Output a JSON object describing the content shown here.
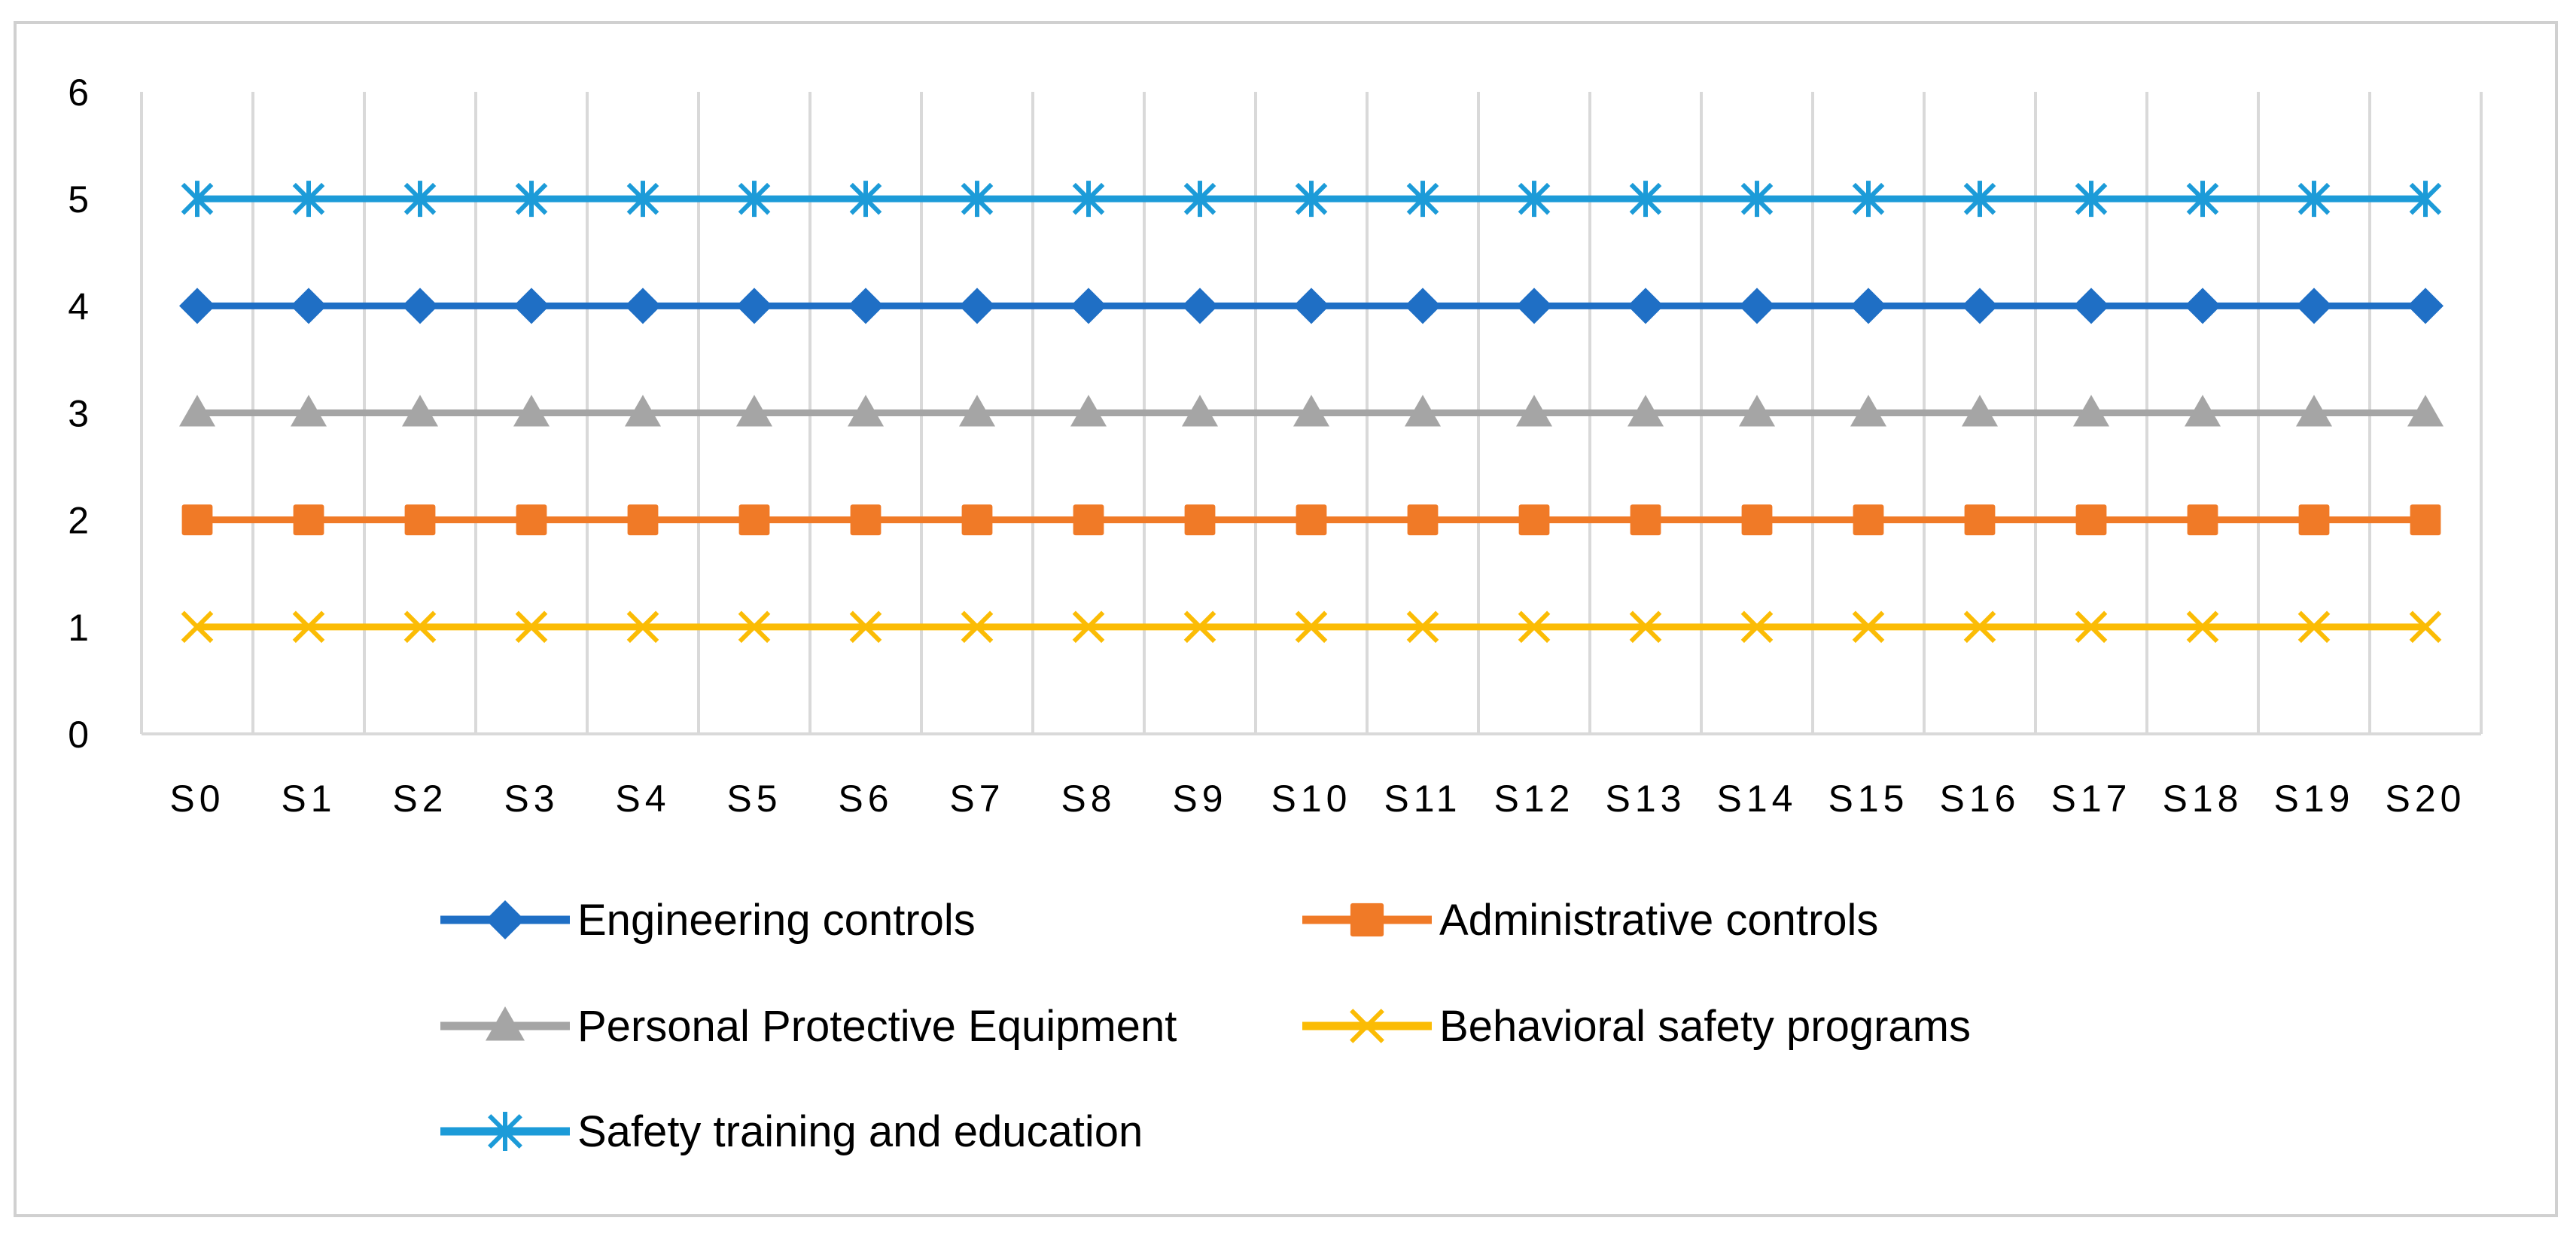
{
  "chart_data": {
    "type": "line",
    "title": "",
    "xlabel": "",
    "ylabel": "",
    "ylim": [
      0,
      6
    ],
    "yticks": [
      "0",
      "1",
      "2",
      "3",
      "4",
      "5",
      "6"
    ],
    "grid": "vertical",
    "legend_position": "bottom",
    "categories": [
      "S0",
      "S1",
      "S2",
      "S3",
      "S4",
      "S5",
      "S6",
      "S7",
      "S8",
      "S9",
      "S10",
      "S11",
      "S12",
      "S13",
      "S14",
      "S15",
      "S16",
      "S17",
      "S18",
      "S19",
      "S20"
    ],
    "series": [
      {
        "name": "Engineering controls",
        "marker": "diamond",
        "color": "#1f6fc5",
        "values": [
          4,
          4,
          4,
          4,
          4,
          4,
          4,
          4,
          4,
          4,
          4,
          4,
          4,
          4,
          4,
          4,
          4,
          4,
          4,
          4,
          4
        ]
      },
      {
        "name": "Administrative controls",
        "marker": "square",
        "color": "#f07a27",
        "values": [
          2,
          2,
          2,
          2,
          2,
          2,
          2,
          2,
          2,
          2,
          2,
          2,
          2,
          2,
          2,
          2,
          2,
          2,
          2,
          2,
          2
        ]
      },
      {
        "name": "Personal Protective Equipment",
        "marker": "triangle",
        "color": "#a5a5a5",
        "values": [
          3,
          3,
          3,
          3,
          3,
          3,
          3,
          3,
          3,
          3,
          3,
          3,
          3,
          3,
          3,
          3,
          3,
          3,
          3,
          3,
          3
        ]
      },
      {
        "name": "Behavioral safety programs",
        "marker": "x",
        "color": "#fbbc05",
        "values": [
          1,
          1,
          1,
          1,
          1,
          1,
          1,
          1,
          1,
          1,
          1,
          1,
          1,
          1,
          1,
          1,
          1,
          1,
          1,
          1,
          1
        ]
      },
      {
        "name": "Safety training and education",
        "marker": "star",
        "color": "#1c9bd8",
        "values": [
          5,
          5,
          5,
          5,
          5,
          5,
          5,
          5,
          5,
          5,
          5,
          5,
          5,
          5,
          5,
          5,
          5,
          5,
          5,
          5,
          5
        ]
      }
    ]
  }
}
